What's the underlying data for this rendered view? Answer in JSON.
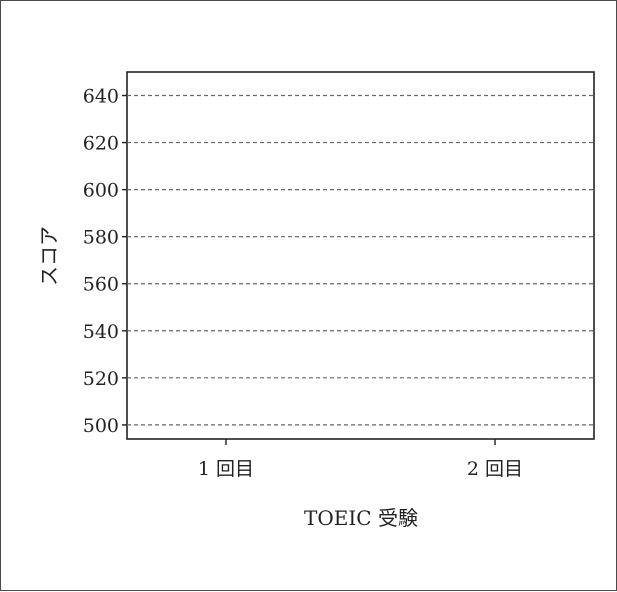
{
  "chart_data": {
    "type": "bar",
    "title": "",
    "xlabel": "TOEIC 受験",
    "ylabel": "スコア",
    "categories": [
      "1 回目",
      "2 回目"
    ],
    "series": [],
    "ylim": [
      494,
      650
    ],
    "yticks": [
      500,
      520,
      540,
      560,
      580,
      600,
      620,
      640
    ],
    "grid": "horizontal dashed",
    "legend": "none"
  }
}
